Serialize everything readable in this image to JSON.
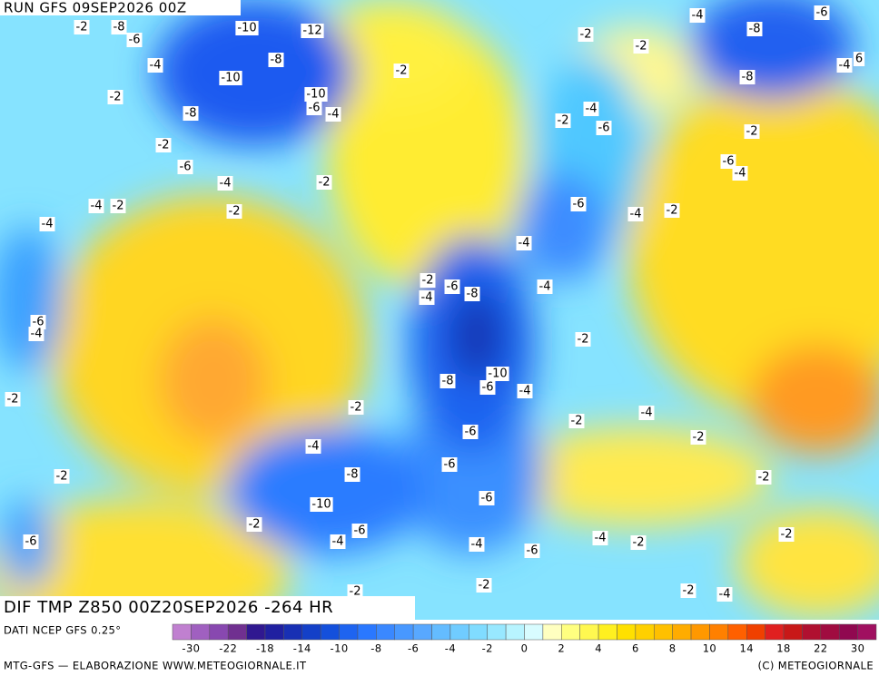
{
  "header": {
    "run": "RUN GFS 09SEP2026 00Z",
    "field": "DIF TMP Z850 00Z20SEP2026 -264 HR"
  },
  "contour_labels": [
    -2,
    -8,
    -6,
    -10,
    -12,
    -8,
    -4,
    -2,
    -10,
    -2,
    -10,
    -6,
    -4,
    -8,
    -2,
    -6,
    -4,
    -2,
    -2,
    -4,
    -4,
    -2,
    -6,
    -4,
    -2,
    -2,
    -6,
    -4,
    -6,
    -2,
    -2,
    -8,
    -4,
    6,
    -8,
    -2,
    -4,
    -6,
    -2,
    -6,
    -4,
    -6,
    -4,
    -2,
    -4,
    -2,
    -4,
    -6,
    -8,
    -4,
    -2,
    -8,
    -10,
    -6,
    -4,
    -2,
    -2,
    -4,
    -6,
    -2,
    -4,
    -6,
    -8,
    -6,
    -10,
    -2,
    -2,
    -6,
    -4,
    -4,
    -6,
    -4,
    -2,
    -2,
    -2,
    -2,
    -2,
    -4
  ],
  "colorbar": {
    "ticks": [
      -30,
      -22,
      -18,
      -14,
      -10,
      -8,
      -6,
      -4,
      -2,
      0,
      2,
      4,
      6,
      8,
      10,
      14,
      18,
      22,
      30
    ]
  },
  "footer": {
    "source": "DATI NCEP GFS 0.25°",
    "credit": "MTG-GFS — ELABORAZIONE WWW.METEOGIORNALE.IT",
    "copyright": "(C) METEOGIORNALE"
  }
}
